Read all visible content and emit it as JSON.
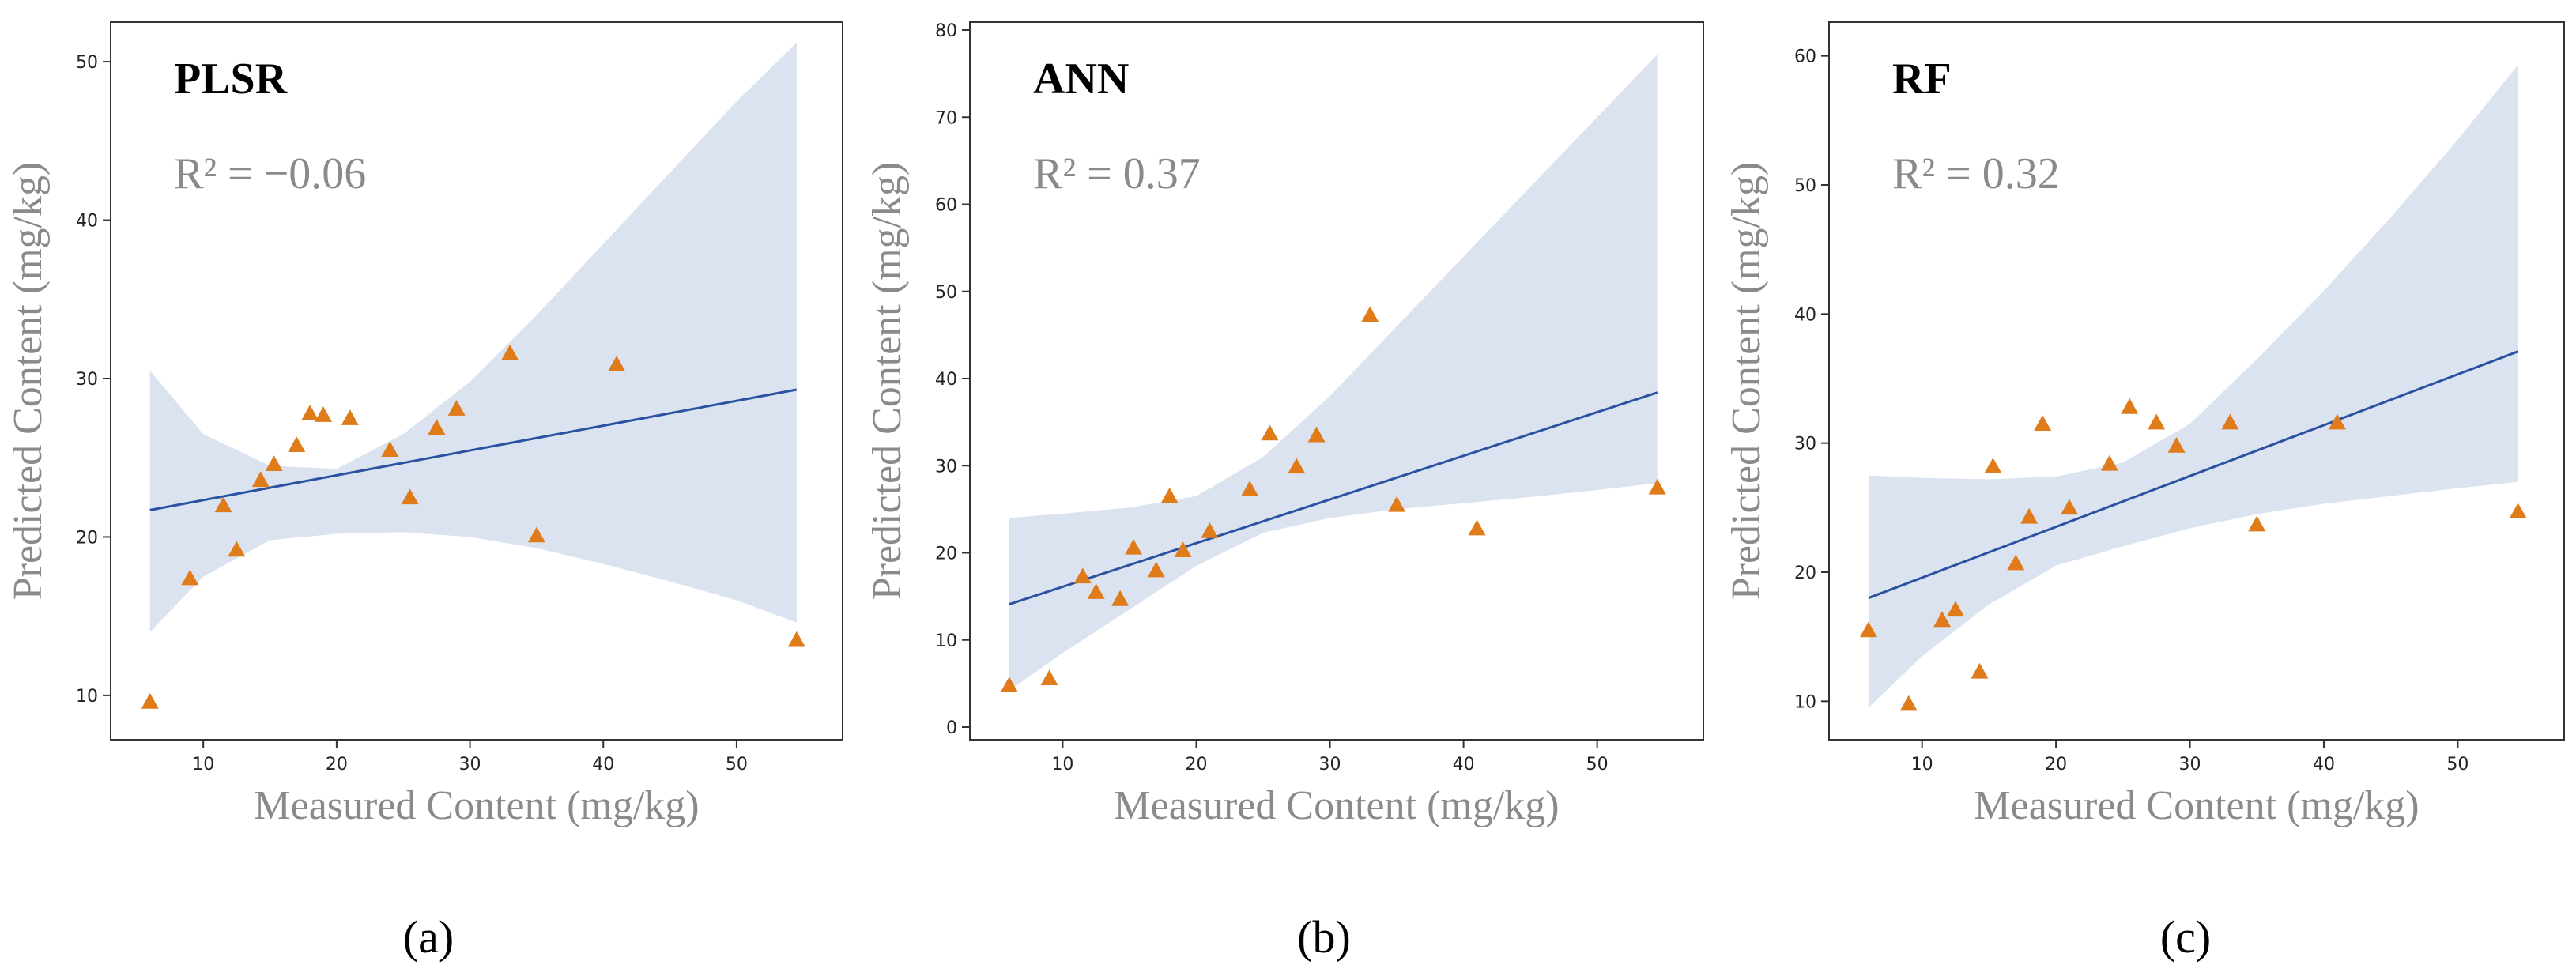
{
  "colors": {
    "band": "#dbe3f0",
    "fit_line": "#2a52a0",
    "points": "#e07b1a",
    "frame": "#333333",
    "axis_title": "#8a8a8a"
  },
  "chart_data": [
    {
      "type": "scatter",
      "title": "PLSR",
      "annotation": "R² = −0.06",
      "xlabel": "Measured Content (mg/kg)",
      "ylabel": "Predicted Content (mg/kg)",
      "caption": "(a)",
      "xlim": [
        4,
        57
      ],
      "ylim": [
        8,
        52
      ],
      "xticks": [
        10,
        20,
        30,
        40,
        50
      ],
      "yticks": [
        10,
        20,
        30,
        40,
        50
      ],
      "grid": false,
      "x": [
        6,
        9,
        11.5,
        12.5,
        14.3,
        15.3,
        17,
        18,
        19,
        21,
        24,
        25.5,
        27.5,
        29,
        33,
        35,
        41,
        54.5
      ],
      "y": [
        9.6,
        17.4,
        22,
        19.2,
        23.6,
        24.6,
        25.8,
        27.8,
        27.7,
        27.5,
        25.5,
        22.5,
        26.9,
        28.1,
        31.6,
        20.1,
        30.9,
        13.5
      ],
      "fit_line": {
        "x": [
          6,
          54.5
        ],
        "y": [
          21.7,
          29.3
        ]
      },
      "confidence_band": {
        "x": [
          6,
          10,
          15,
          20,
          25,
          30,
          35,
          40,
          45,
          50,
          54.5
        ],
        "upper": [
          30.5,
          26.5,
          24.5,
          24.3,
          26.5,
          29.8,
          34,
          38.5,
          43,
          47.5,
          51.2
        ],
        "lower": [
          14,
          17.5,
          19.8,
          20.2,
          20.3,
          20,
          19.3,
          18.3,
          17.2,
          16,
          14.6
        ]
      }
    },
    {
      "type": "scatter",
      "title": "ANN",
      "annotation": "R² = 0.37",
      "xlabel": "Measured Content (mg/kg)",
      "ylabel": "Predicted Content (mg/kg)",
      "caption": "(b)",
      "xlim": [
        4,
        57
      ],
      "ylim": [
        0,
        80
      ],
      "xticks": [
        10,
        20,
        30,
        40,
        50
      ],
      "yticks": [
        0,
        10,
        20,
        30,
        40,
        50,
        60,
        70,
        80
      ],
      "grid": false,
      "x": [
        6,
        9,
        11.5,
        12.5,
        14.3,
        15.3,
        17,
        18,
        19,
        21,
        24,
        25.5,
        27.5,
        29,
        33,
        35,
        41,
        54.5
      ],
      "y": [
        4.8,
        5.6,
        17.3,
        15.5,
        14.7,
        20.6,
        18,
        26.5,
        20.3,
        22.5,
        27.3,
        33.7,
        29.9,
        33.5,
        47.3,
        25.5,
        22.8,
        27.5
      ],
      "fit_line": {
        "x": [
          6,
          54.5
        ],
        "y": [
          14.1,
          38.4
        ]
      },
      "confidence_band": {
        "x": [
          6,
          10,
          15,
          20,
          25,
          30,
          35,
          40,
          45,
          50,
          54.5
        ],
        "upper": [
          24,
          24.5,
          25.2,
          26.5,
          31,
          38,
          46,
          54,
          62,
          70,
          77.2
        ],
        "lower": [
          4.2,
          8.5,
          13.5,
          18.5,
          22.3,
          24,
          25,
          25.7,
          26.4,
          27.2,
          28
        ]
      }
    },
    {
      "type": "scatter",
      "title": "RF",
      "annotation": "R² = 0.32",
      "xlabel": "Measured Content (mg/kg)",
      "ylabel": "Predicted Content (mg/kg)",
      "caption": "(c)",
      "xlim": [
        4,
        57
      ],
      "ylim": [
        8,
        62
      ],
      "xticks": [
        10,
        20,
        30,
        40,
        50
      ],
      "yticks": [
        10,
        20,
        30,
        40,
        50,
        60
      ],
      "grid": false,
      "x": [
        6,
        9,
        11.5,
        12.5,
        14.3,
        15.3,
        17,
        18,
        19,
        21,
        24,
        25.5,
        27.5,
        29,
        33,
        35,
        41,
        54.5
      ],
      "y": [
        15.5,
        9.8,
        16.3,
        17.1,
        12.3,
        28.2,
        20.7,
        24.3,
        31.5,
        25,
        28.4,
        32.8,
        31.6,
        29.8,
        31.6,
        23.7,
        31.6,
        24.7
      ],
      "fit_line": {
        "x": [
          6,
          54.5
        ],
        "y": [
          18,
          37.1
        ]
      },
      "confidence_band": {
        "x": [
          6,
          10,
          15,
          20,
          25,
          30,
          35,
          40,
          45,
          50,
          54.5
        ],
        "upper": [
          27.5,
          27.3,
          27.2,
          27.4,
          28.5,
          31.5,
          36.5,
          41.8,
          47.5,
          53.5,
          59.3
        ],
        "lower": [
          9.5,
          13.5,
          17.5,
          20.5,
          22,
          23.4,
          24.5,
          25.3,
          25.9,
          26.5,
          27
        ]
      }
    }
  ]
}
